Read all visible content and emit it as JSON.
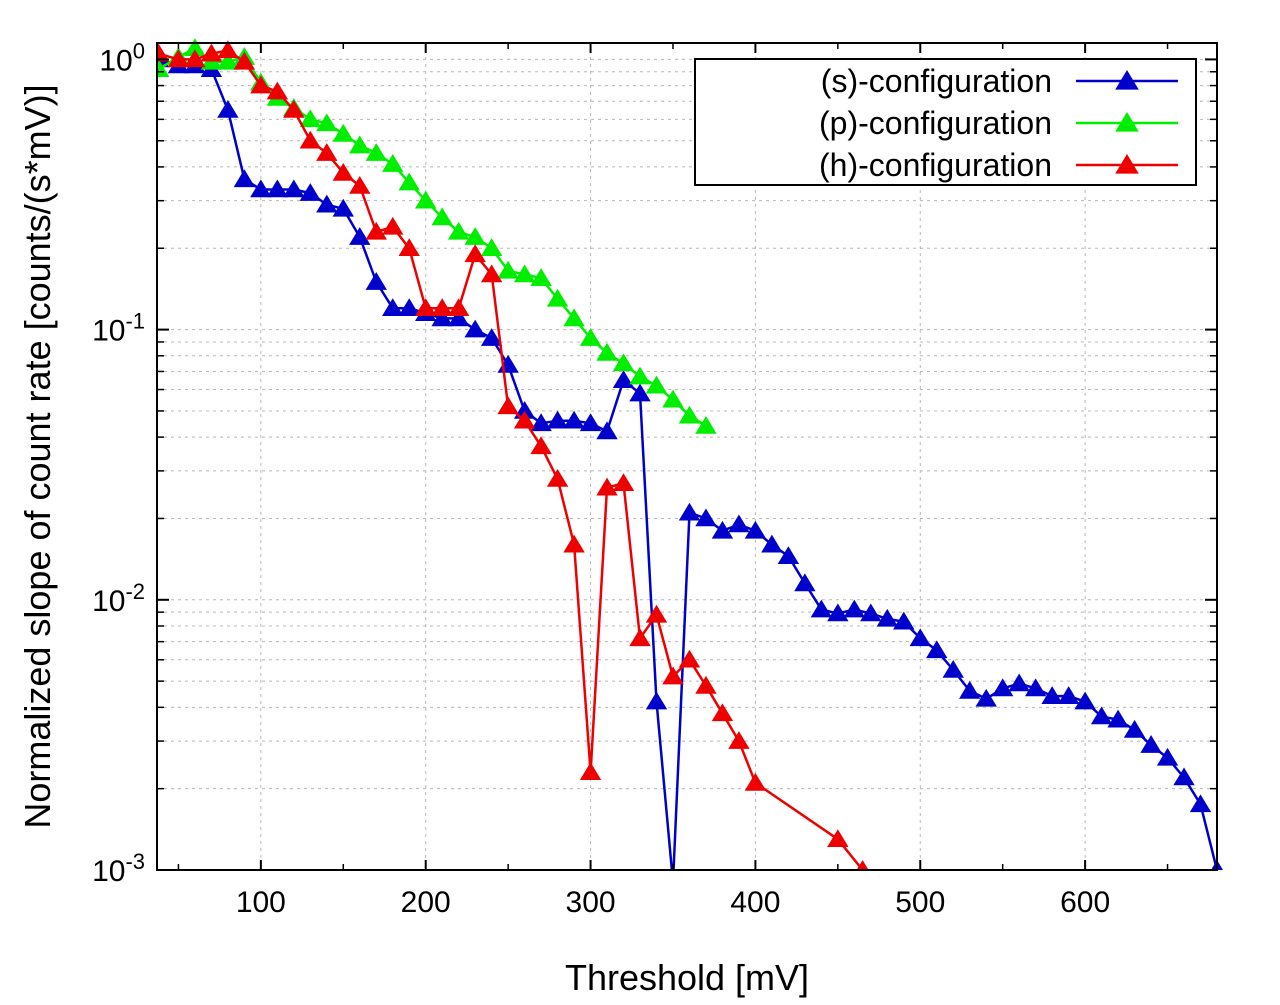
{
  "chart_data": {
    "type": "line",
    "title": "",
    "xlabel": "Threshold [mV]",
    "ylabel": "Normalized slope of count rate [counts/(s*mV)]",
    "x_scale": "linear",
    "y_scale": "log",
    "xlim": [
      37,
      680
    ],
    "ylim": [
      0.001,
      1.15
    ],
    "x_ticks": [
      100,
      200,
      300,
      400,
      500,
      600
    ],
    "x_tick_labels": [
      "100",
      "200",
      "300",
      "400",
      "500",
      "600"
    ],
    "y_ticks": [
      1,
      0.1,
      0.01,
      0.001
    ],
    "y_tick_labels": [
      {
        "base": "10",
        "exp": "0"
      },
      {
        "base": "10",
        "exp": "-1"
      },
      {
        "base": "10",
        "exp": "-2"
      },
      {
        "base": "10",
        "exp": "-3"
      }
    ],
    "grid": true,
    "legend_position": "top-right",
    "series": [
      {
        "name": "(s)-configuration",
        "color": "#0000cc",
        "marker": "triangle",
        "x": [
          38,
          50,
          60,
          70,
          80,
          90,
          100,
          110,
          120,
          130,
          140,
          150,
          160,
          170,
          180,
          190,
          200,
          210,
          220,
          230,
          240,
          250,
          260,
          270,
          280,
          290,
          300,
          310,
          320,
          330,
          340,
          350,
          360,
          370,
          380,
          390,
          400,
          410,
          420,
          430,
          440,
          450,
          460,
          470,
          480,
          490,
          500,
          510,
          520,
          530,
          540,
          550,
          560,
          570,
          580,
          590,
          600,
          610,
          620,
          630,
          640,
          650,
          660,
          670,
          680
        ],
        "y": [
          1.0,
          0.95,
          0.95,
          0.92,
          0.65,
          0.36,
          0.33,
          0.33,
          0.33,
          0.32,
          0.29,
          0.28,
          0.22,
          0.15,
          0.12,
          0.12,
          0.115,
          0.11,
          0.11,
          0.1,
          0.093,
          0.074,
          0.05,
          0.045,
          0.046,
          0.046,
          0.045,
          0.042,
          0.065,
          0.058,
          0.0042,
          0.0009,
          0.021,
          0.02,
          0.018,
          0.019,
          0.018,
          0.016,
          0.0145,
          0.0115,
          0.0092,
          0.0089,
          0.0092,
          0.0089,
          0.0085,
          0.0083,
          0.0072,
          0.0065,
          0.0055,
          0.0046,
          0.0043,
          0.0047,
          0.0049,
          0.0047,
          0.0044,
          0.0044,
          0.0042,
          0.0037,
          0.0036,
          0.0033,
          0.0029,
          0.0026,
          0.0022,
          0.00175,
          0.001
        ]
      },
      {
        "name": "(p)-configuration",
        "color": "#00ee00",
        "marker": "triangle",
        "x": [
          38,
          50,
          60,
          70,
          80,
          90,
          100,
          110,
          120,
          130,
          140,
          150,
          160,
          170,
          180,
          190,
          200,
          210,
          220,
          230,
          240,
          250,
          260,
          270,
          280,
          290,
          300,
          310,
          320,
          330,
          340,
          350,
          360,
          370
        ],
        "y": [
          0.92,
          1.02,
          1.1,
          0.98,
          0.98,
          1.02,
          0.82,
          0.72,
          0.66,
          0.6,
          0.58,
          0.53,
          0.48,
          0.45,
          0.41,
          0.35,
          0.3,
          0.26,
          0.23,
          0.22,
          0.2,
          0.165,
          0.16,
          0.155,
          0.13,
          0.11,
          0.093,
          0.082,
          0.075,
          0.067,
          0.062,
          0.055,
          0.048,
          0.044
        ]
      },
      {
        "name": "(h)-configuration",
        "color": "#ee0000",
        "marker": "triangle",
        "x": [
          38,
          50,
          60,
          70,
          80,
          90,
          100,
          110,
          120,
          130,
          140,
          150,
          160,
          170,
          180,
          190,
          200,
          210,
          220,
          230,
          240,
          250,
          260,
          270,
          280,
          290,
          300,
          310,
          320,
          330,
          340,
          350,
          360,
          370,
          380,
          390,
          400,
          450,
          465
        ],
        "y": [
          1.05,
          1.0,
          1.0,
          1.05,
          1.08,
          0.98,
          0.8,
          0.76,
          0.65,
          0.5,
          0.45,
          0.38,
          0.34,
          0.23,
          0.24,
          0.2,
          0.12,
          0.12,
          0.12,
          0.19,
          0.16,
          0.052,
          0.046,
          0.037,
          0.028,
          0.016,
          0.0023,
          0.026,
          0.027,
          0.0072,
          0.0088,
          0.0052,
          0.006,
          0.0048,
          0.0038,
          0.003,
          0.0021,
          0.0013,
          0.001
        ]
      }
    ]
  }
}
